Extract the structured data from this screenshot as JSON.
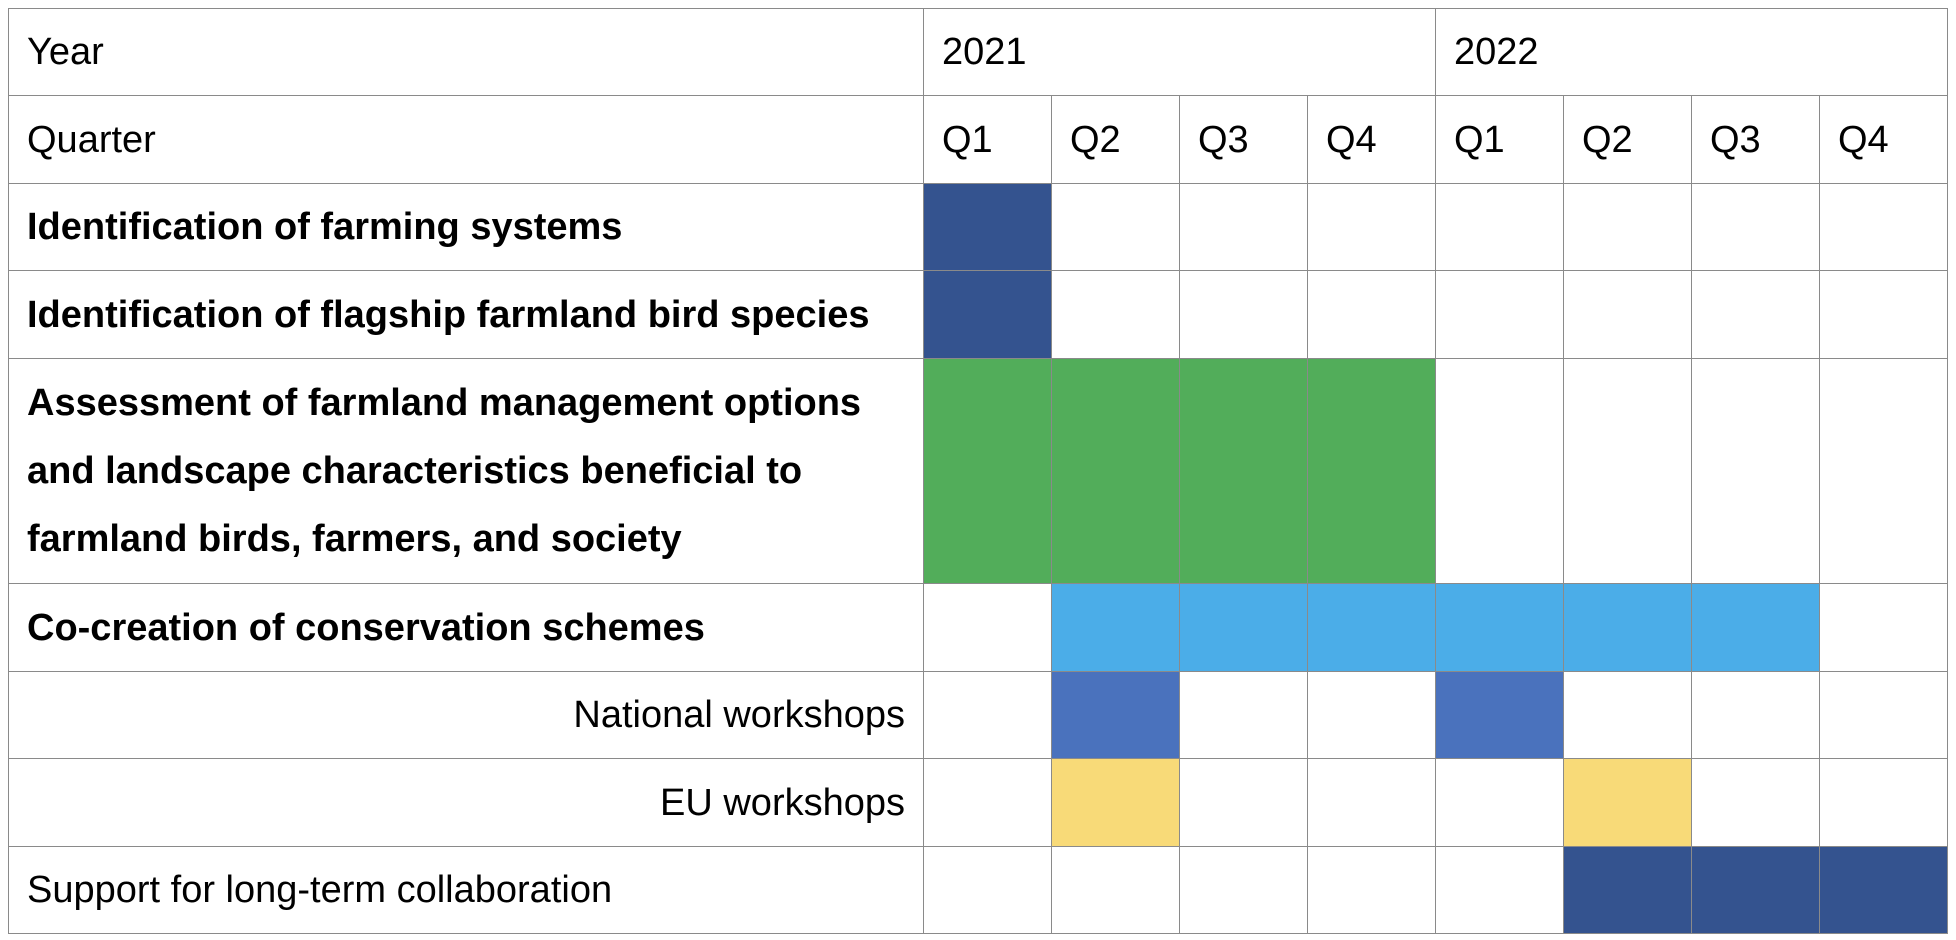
{
  "header": {
    "year_label": "Year",
    "quarter_label": "Quarter",
    "years": [
      "2021",
      "2022"
    ],
    "quarters": [
      "Q1",
      "Q2",
      "Q3",
      "Q4",
      "Q1",
      "Q2",
      "Q3",
      "Q4"
    ]
  },
  "colors": {
    "dark_blue": "#34538F",
    "green": "#52AD5A",
    "sky_blue": "#4BADE8",
    "mid_blue": "#4A72BD",
    "yellow": "#F8DA78",
    "grid": "#8A8A8A"
  },
  "tasks": [
    {
      "label": "Identification of farming systems",
      "bold": true,
      "align": "left",
      "cells": [
        1,
        0,
        0,
        0,
        0,
        0,
        0,
        0
      ],
      "color": "dark_blue"
    },
    {
      "label": "Identification of flagship farmland bird species",
      "bold": true,
      "align": "left",
      "cells": [
        1,
        0,
        0,
        0,
        0,
        0,
        0,
        0
      ],
      "color": "dark_blue"
    },
    {
      "label": "Assessment of farmland management options and landscape characteristics beneficial to farmland birds, farmers, and society",
      "bold": true,
      "align": "left",
      "cells": [
        1,
        1,
        1,
        1,
        0,
        0,
        0,
        0
      ],
      "color": "green"
    },
    {
      "label": "Co-creation of conservation schemes",
      "bold": true,
      "align": "left",
      "cells": [
        0,
        1,
        1,
        1,
        1,
        1,
        1,
        0
      ],
      "color": "sky_blue"
    },
    {
      "label": "National workshops",
      "bold": false,
      "align": "right",
      "cells": [
        0,
        1,
        0,
        0,
        1,
        0,
        0,
        0
      ],
      "color": "mid_blue"
    },
    {
      "label": "EU workshops",
      "bold": false,
      "align": "right",
      "cells": [
        0,
        1,
        0,
        0,
        0,
        1,
        0,
        0
      ],
      "color": "yellow"
    },
    {
      "label": "Support for long-term collaboration",
      "bold": false,
      "align": "left",
      "cells": [
        0,
        0,
        0,
        0,
        0,
        1,
        1,
        1
      ],
      "color": "dark_blue"
    }
  ]
}
